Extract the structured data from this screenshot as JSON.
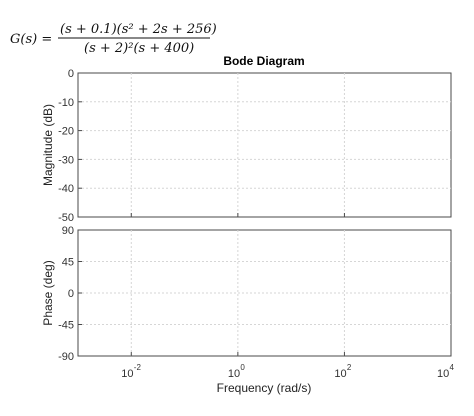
{
  "equation": {
    "lhs": "G(s) =",
    "numerator": "(s + 0.1)(s² + 2s + 256)",
    "denominator": "(s + 2)²(s + 400)"
  },
  "chart_data": {
    "type": "line",
    "title": "Bode Diagram",
    "xlabel": "Frequency  (rad/s)",
    "xscale": "log",
    "xlim": [
      0.001,
      10000
    ],
    "x_ticks": [
      {
        "base": "10",
        "exp": "-2"
      },
      {
        "base": "10",
        "exp": "0"
      },
      {
        "base": "10",
        "exp": "2"
      },
      {
        "base": "10",
        "exp": "4"
      }
    ],
    "magnitude": {
      "ylabel": "Magnitude (dB)",
      "ylim": [
        -50,
        0
      ],
      "yticks": [
        "0",
        "-10",
        "-20",
        "-30",
        "-40",
        "-50"
      ],
      "grid": true,
      "series": []
    },
    "phase": {
      "ylabel": "Phase (deg)",
      "ylim": [
        -90,
        90
      ],
      "yticks": [
        "90",
        "45",
        "0",
        "-45",
        "-90"
      ],
      "grid": true,
      "series": []
    }
  },
  "colors": {
    "frame": "#4a4a4a",
    "grid": "#d6d6d6",
    "background": "#ffffff"
  }
}
